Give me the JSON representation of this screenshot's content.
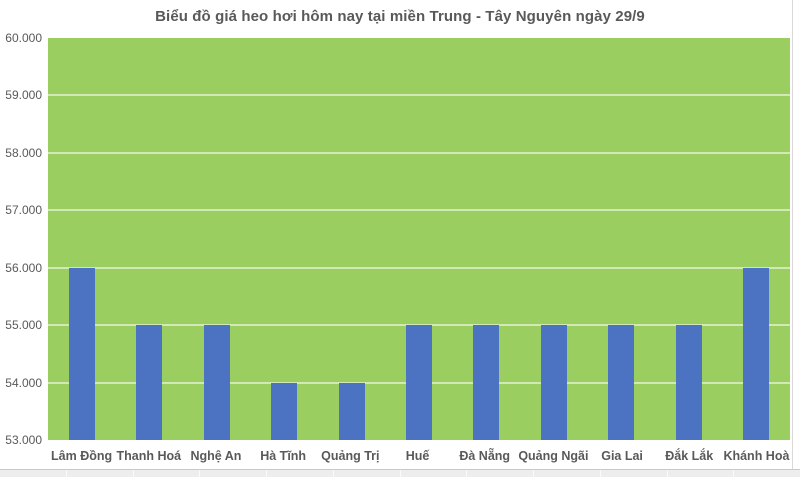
{
  "page": {
    "background_color": "#ffffff"
  },
  "chart_data": {
    "type": "bar",
    "title": "Biểu đồ giá heo hơi hôm nay tại miền Trung - Tây Nguyên ngày 29/9",
    "categories": [
      "Lâm Đồng",
      "Thanh Hoá",
      "Nghệ An",
      "Hà Tĩnh",
      "Quảng Trị",
      "Huế",
      "Đà Nẵng",
      "Quảng Ngãi",
      "Gia Lai",
      "Đắk Lắk",
      "Khánh Hoà"
    ],
    "values": [
      56000,
      55000,
      55000,
      54000,
      54000,
      55000,
      55000,
      55000,
      55000,
      55000,
      56000
    ],
    "ylim": [
      53000,
      60000
    ],
    "ytick_step": 1000,
    "ytick_labels": [
      "60.000",
      "59.000",
      "58.000",
      "57.000",
      "56.000",
      "55.000",
      "54.000",
      "53.000"
    ],
    "xlabel": "",
    "ylabel": "",
    "grid": true,
    "legend": null,
    "bar_color": "#4C73C2",
    "plot_background_color": "#9BCE60",
    "gridline_color": "rgba(255,255,255,0.55)",
    "axis_text_color": "#595959",
    "title_color": "#595959"
  }
}
